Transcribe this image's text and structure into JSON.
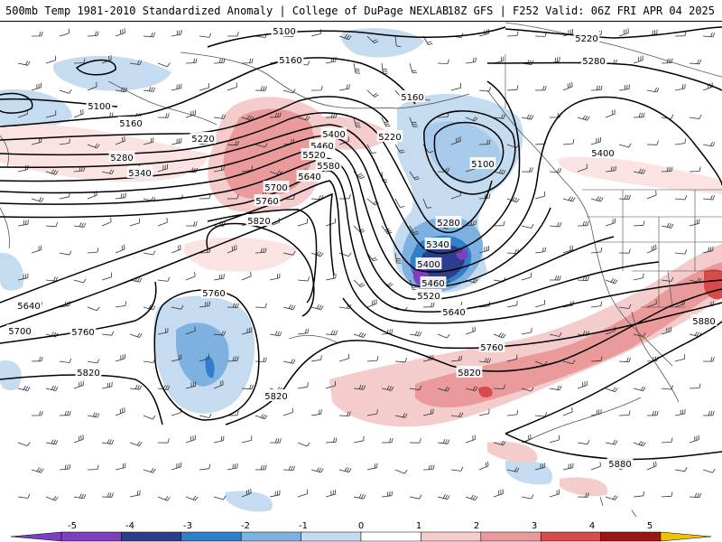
{
  "header": {
    "title_left": "500mb Temp 1981-2010 Standardized Anomaly | College of DuPage NEXLAB",
    "title_right": "18Z GFS | F252 Valid: 06Z FRI APR 04 2025"
  },
  "contours": [
    {
      "label": "5100",
      "positions": [
        [
          315,
          34
        ],
        [
          110,
          117
        ],
        [
          535,
          181
        ]
      ]
    },
    {
      "label": "5160",
      "positions": [
        [
          322,
          66
        ],
        [
          145,
          136
        ],
        [
          457,
          107
        ]
      ]
    },
    {
      "label": "5220",
      "positions": [
        [
          650,
          42
        ],
        [
          225,
          153
        ],
        [
          432,
          151
        ]
      ]
    },
    {
      "label": "5280",
      "positions": [
        [
          658,
          67
        ],
        [
          135,
          174
        ],
        [
          497,
          246
        ]
      ]
    },
    {
      "label": "5340",
      "positions": [
        [
          155,
          191
        ],
        [
          485,
          270
        ]
      ]
    },
    {
      "label": "5400",
      "positions": [
        [
          370,
          148
        ],
        [
          668,
          169
        ],
        [
          475,
          292
        ]
      ]
    },
    {
      "label": "5460",
      "positions": [
        [
          357,
          161
        ],
        [
          480,
          313
        ]
      ]
    },
    {
      "label": "5520",
      "positions": [
        [
          348,
          171
        ],
        [
          475,
          327
        ]
      ]
    },
    {
      "label": "5580",
      "positions": [
        [
          364,
          183
        ]
      ]
    },
    {
      "label": "5640",
      "positions": [
        [
          343,
          195
        ],
        [
          32,
          338
        ],
        [
          503,
          345
        ]
      ]
    },
    {
      "label": "5700",
      "positions": [
        [
          306,
          207
        ],
        [
          22,
          366
        ]
      ]
    },
    {
      "label": "5760",
      "positions": [
        [
          296,
          222
        ],
        [
          237,
          324
        ],
        [
          92,
          367
        ],
        [
          545,
          384
        ]
      ]
    },
    {
      "label": "5820",
      "positions": [
        [
          287,
          244
        ],
        [
          98,
          412
        ],
        [
          306,
          438
        ],
        [
          520,
          412
        ]
      ]
    },
    {
      "label": "5880",
      "positions": [
        [
          780,
          355
        ],
        [
          687,
          513
        ]
      ]
    }
  ],
  "legend": {
    "ticks": [
      "-5",
      "-4",
      "-3",
      "-2",
      "-1",
      "0",
      "1",
      "2",
      "3",
      "4",
      "5"
    ],
    "colors": [
      "#7b3fbf",
      "#2a3e8c",
      "#2f7fc9",
      "#7fb1e0",
      "#c4dbf0",
      "#ffffff",
      "#f5cccc",
      "#ea9a9a",
      "#d94a4a",
      "#9c1414",
      "#f2c200"
    ]
  }
}
